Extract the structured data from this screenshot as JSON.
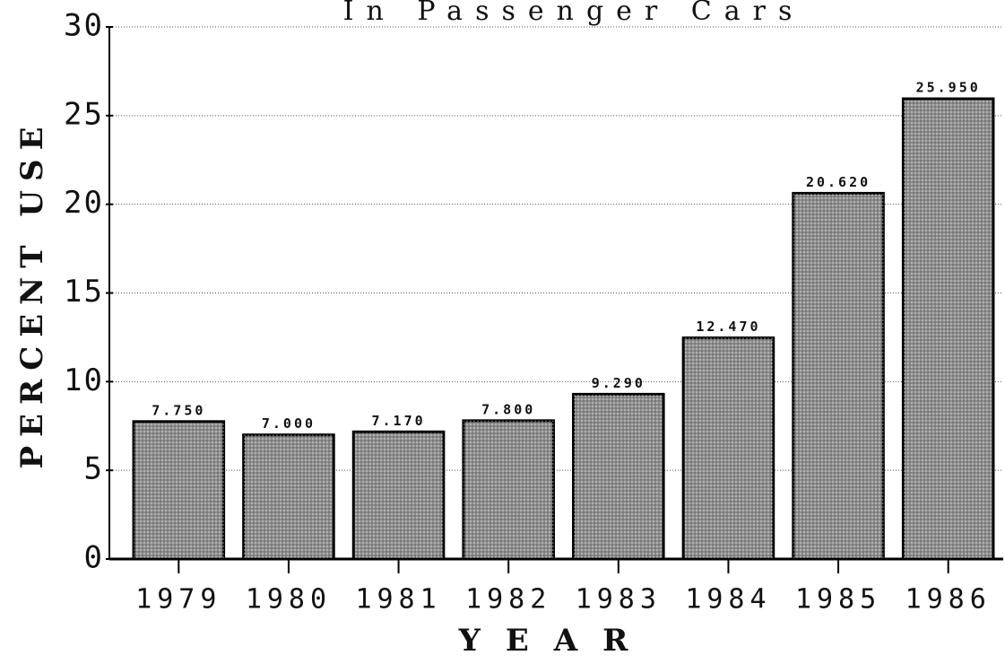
{
  "chart_data": {
    "type": "bar",
    "title": "In Passenger Cars",
    "categories": [
      "1979",
      "1980",
      "1981",
      "1982",
      "1983",
      "1984",
      "1985",
      "1986"
    ],
    "values": [
      7.75,
      7.0,
      7.17,
      7.8,
      9.29,
      12.47,
      20.62,
      25.95
    ],
    "value_labels": [
      "7.750",
      "7.000",
      "7.170",
      "7.800",
      "9.290",
      "12.470",
      "20.620",
      "25.950"
    ],
    "color": "#8c8c8c",
    "ylabel": "PERCENT USE",
    "xlabel": "YEAR",
    "ylim": [
      0,
      30
    ],
    "yticks": [
      0,
      5,
      10,
      15,
      20,
      25,
      30
    ],
    "grid": true
  }
}
